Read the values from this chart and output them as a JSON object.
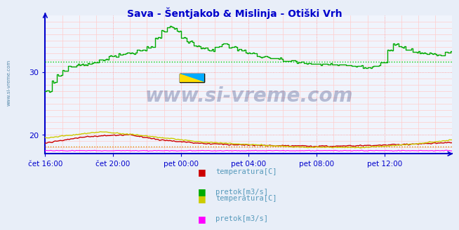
{
  "title": "Sava - Šentjakob & Mislinja - Otiški Vrh",
  "title_color": "#0000cc",
  "bg_color": "#e8eef8",
  "plot_bg_color": "#f0f4fc",
  "xlabels": [
    "čet 16:00",
    "čet 20:00",
    "pet 00:00",
    "pet 04:00",
    "pet 08:00",
    "pet 12:00"
  ],
  "xtick_positions": [
    0,
    48,
    96,
    144,
    192,
    240
  ],
  "yticks": [
    20,
    30
  ],
  "ylim": [
    17.0,
    39.0
  ],
  "xlim": [
    0,
    288
  ],
  "watermark": "www.si-vreme.com",
  "watermark_color": "#1a2a6e",
  "legend1": [
    {
      "label": "temperatura[C]",
      "color": "#cc0000"
    },
    {
      "label": "pretok[m3/s]",
      "color": "#00aa00"
    }
  ],
  "legend2": [
    {
      "label": "temperatura[C]",
      "color": "#cccc00"
    },
    {
      "label": "pretok[m3/s]",
      "color": "#ff00ff"
    }
  ],
  "hline_green_y": 31.7,
  "hline_orange_y": 18.1,
  "axis_color": "#0000cc",
  "tick_label_color": "#0000cc",
  "grid_major_color": "#ff8888",
  "grid_minor_color": "#ffcccc"
}
